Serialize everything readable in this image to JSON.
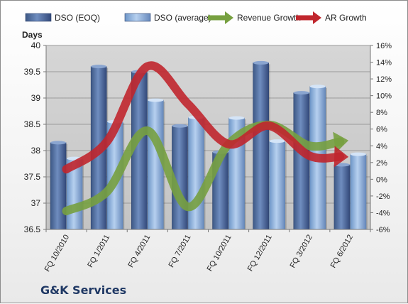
{
  "chart_data": {
    "type": "bar",
    "title": "",
    "company": "G&K Services",
    "ylabel": "Days",
    "ylim": [
      36.5,
      40
    ],
    "y_ticks": [
      "36.5",
      "37",
      "37.5",
      "38",
      "38.5",
      "39",
      "39.5",
      "40"
    ],
    "y2lim": [
      -6,
      16
    ],
    "y2_ticks": [
      "-6%",
      "-4%",
      "-2%",
      "0%",
      "2%",
      "4%",
      "6%",
      "8%",
      "10%",
      "12%",
      "14%",
      "16%"
    ],
    "categories": [
      "FQ 10/2010",
      "FQ 1/2011",
      "FQ 4/2011",
      "FQ 7/2011",
      "FQ 10/2011",
      "FQ 12/2011",
      "FQ 3/2012",
      "FQ 6/2012"
    ],
    "series": [
      {
        "name": "DSO (EOQ)",
        "kind": "bar",
        "color": "#4f6d9c",
        "values": [
          38.15,
          39.6,
          39.5,
          38.47,
          37.97,
          39.67,
          39.1,
          37.73
        ]
      },
      {
        "name": "DSO (average)",
        "kind": "bar",
        "color": "#8eb4e3",
        "values": [
          37.85,
          38.55,
          38.96,
          38.63,
          38.62,
          38.18,
          39.22,
          37.93
        ]
      },
      {
        "name": "Revenue Growth",
        "kind": "arrow-line",
        "axis": "right",
        "color": "#77a040",
        "points": [
          [
            0.0,
            -3.8
          ],
          [
            1.0,
            -1.5
          ],
          [
            2.0,
            5.8
          ],
          [
            3.0,
            -3.3
          ],
          [
            4.0,
            4.2
          ],
          [
            5.0,
            6.5
          ],
          [
            6.0,
            4.0
          ],
          [
            6.75,
            4.5
          ]
        ]
      },
      {
        "name": "AR Growth",
        "kind": "arrow-line",
        "axis": "right",
        "color": "#c0262d",
        "points": [
          [
            0.0,
            1.2
          ],
          [
            1.0,
            4.5
          ],
          [
            2.0,
            13.5
          ],
          [
            3.0,
            9.0
          ],
          [
            4.0,
            4.2
          ],
          [
            5.0,
            6.4
          ],
          [
            6.0,
            2.8
          ],
          [
            6.75,
            2.7
          ]
        ]
      }
    ],
    "legend_position": "top",
    "grid": true
  }
}
